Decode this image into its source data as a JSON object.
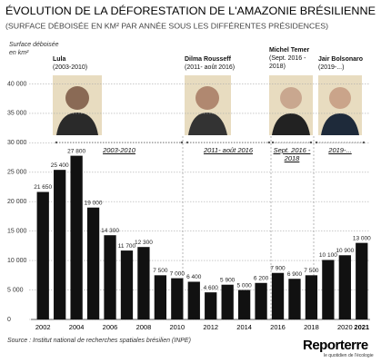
{
  "chart_data": {
    "type": "bar",
    "title": "ÉVOLUTION DE LA DÉFORESTATION DE L'AMAZONIE BRÉSILIENNE",
    "subtitle": "(SURFACE DÉBOISÉE EN KM² PAR ANNÉE SOUS LES DIFFÉRENTES PRÉSIDENCES)",
    "y_label": "Surface déboisée en km²",
    "categories": [
      "2002",
      null,
      "2004",
      null,
      "2006",
      null,
      "2008",
      null,
      "2010",
      null,
      "2012",
      null,
      "2014",
      null,
      "2016",
      null,
      "2018",
      null,
      "2020",
      "2021"
    ],
    "values": [
      21650,
      25400,
      27800,
      19000,
      14300,
      11700,
      12300,
      7500,
      7000,
      6400,
      4600,
      5900,
      5000,
      6200,
      7900,
      6900,
      7500,
      10100,
      10900,
      13000
    ],
    "value_labels": [
      "21 650",
      "25 400",
      "27 800",
      "19 000",
      "14 300",
      "11 700",
      "12 300",
      "7 500",
      "7 000",
      "6 400",
      "4 600",
      "5 900",
      "5 000",
      "6 200",
      "7 900",
      "6 900",
      "7 500",
      "10 100",
      "10 900",
      "13 000"
    ],
    "color": "#111111",
    "ylim": [
      0,
      45000
    ],
    "yticks": [
      0,
      {
        "value": 5000,
        "label": "5 000"
      },
      {
        "value": 10000,
        "label": "10 000"
      },
      {
        "value": 15000,
        "label": "15 000"
      },
      {
        "value": 20000,
        "label": "20 000"
      },
      {
        "value": 25000,
        "label": "25 000"
      },
      {
        "value": 30000,
        "label": "30 000"
      },
      {
        "value": 35000,
        "label": "35 000"
      },
      {
        "value": 40000,
        "label": "40 000"
      }
    ],
    "grid": true,
    "presidencies": [
      {
        "name": "Lula",
        "term": "(2003-2010)",
        "period": "2003-2010"
      },
      {
        "name": "Dilma Rousseff",
        "term": "(2011- août 2016)",
        "period": "2011- août 2016"
      },
      {
        "name": "Michel Temer",
        "term": "(Sept. 2016 - 2018)",
        "period": "Sept. 2016 - 2018"
      },
      {
        "name": "Jair Bolsonaro",
        "term": "(2019-...)",
        "period": "2019-..."
      }
    ],
    "source": "Source : Institut national de recherches spatiales brésilien (INPE)",
    "logo": {
      "name": "Reporterre",
      "tagline": "le quotidien de l'écologie"
    }
  }
}
